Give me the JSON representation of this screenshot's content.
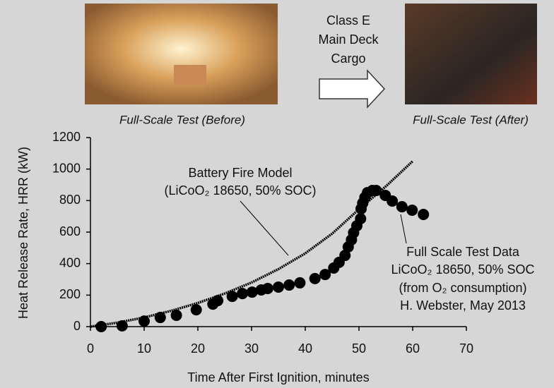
{
  "header": {
    "left_caption": "Full-Scale Test (Before)",
    "right_caption": "Full-Scale Test (After)",
    "center_lines": [
      "Class E",
      "Main Deck",
      "Cargo"
    ]
  },
  "chart_data": {
    "type": "line",
    "xlabel": "Time After First Ignition, minutes",
    "ylabel": "Heat Release Rate, HRR (kW)",
    "xlim": [
      0,
      70
    ],
    "xticks": [
      0,
      10,
      20,
      30,
      40,
      50,
      60,
      70
    ],
    "ylim": [
      0,
      1200
    ],
    "yticks": [
      0,
      200,
      400,
      600,
      800,
      1000,
      1200
    ],
    "annotations": [
      {
        "lines": [
          "Battery Fire Model",
          "(LiCoO₂ 18650, 50% SOC)"
        ]
      },
      {
        "lines": [
          "Full Scale Test Data",
          "LiCoO₂ 18650, 50% SOC",
          "(from O₂ consumption)",
          "H. Webster, May 2013"
        ]
      }
    ],
    "series": [
      {
        "style": "line",
        "color": "#000000",
        "x": [
          0,
          5,
          10,
          15,
          20,
          25,
          30,
          35,
          40,
          45,
          50,
          55,
          60
        ],
        "values": [
          0,
          25,
          58,
          100,
          150,
          210,
          280,
          365,
          465,
          590,
          745,
          890,
          1050
        ]
      },
      {
        "style": "points",
        "color": "#000000",
        "x": [
          2,
          5.9,
          10,
          13,
          16,
          19.7,
          22.8,
          23.7,
          26.4,
          28.3,
          30.1,
          31.8,
          33,
          35,
          37,
          39,
          41.8,
          43.7,
          45.3,
          46.3,
          47.4,
          48,
          48.6,
          49,
          49.6,
          50.3,
          50.4,
          50.7,
          51.1,
          51.6,
          52.5,
          53.2,
          54.9,
          56.2,
          58,
          59.9,
          62
        ],
        "values": [
          0,
          5,
          35,
          58,
          72,
          107,
          143,
          165,
          192,
          210,
          219,
          233,
          242,
          251,
          264,
          278,
          305,
          331,
          372,
          408,
          452,
          506,
          551,
          596,
          640,
          685,
          748,
          784,
          820,
          851,
          864,
          864,
          833,
          797,
          761,
          739,
          712
        ]
      }
    ]
  }
}
